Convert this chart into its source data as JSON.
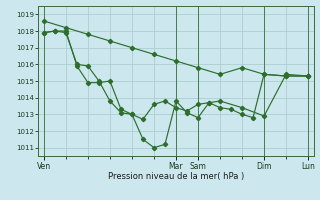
{
  "bg_color": "#cce8ee",
  "grid_color": "#aacccc",
  "line_color": "#2d6e2d",
  "xlabel": "Pression niveau de la mer( hPa )",
  "ylim": [
    1010.5,
    1019.5
  ],
  "yticks": [
    1011,
    1012,
    1013,
    1014,
    1015,
    1016,
    1017,
    1018,
    1019
  ],
  "figsize": [
    3.2,
    2.0
  ],
  "dpi": 100,
  "line1_x": [
    0,
    12,
    24,
    36,
    48,
    60,
    72,
    84,
    96,
    108,
    120,
    132,
    144
  ],
  "line1_y": [
    1018.6,
    1018.2,
    1017.8,
    1017.4,
    1017.0,
    1016.6,
    1016.2,
    1015.8,
    1015.4,
    1015.8,
    1015.4,
    1015.3,
    1015.3
  ],
  "line2_x": [
    0,
    6,
    12,
    18,
    24,
    30,
    36,
    42,
    48,
    54,
    60,
    66,
    72,
    78,
    84,
    90,
    96,
    102,
    108,
    114,
    120,
    132,
    144
  ],
  "line2_y": [
    1017.9,
    1018.0,
    1017.9,
    1016.0,
    1015.9,
    1015.0,
    1013.8,
    1013.1,
    1013.0,
    1012.7,
    1013.6,
    1013.8,
    1013.4,
    1013.2,
    1013.6,
    1013.7,
    1013.4,
    1013.3,
    1013.0,
    1012.8,
    1015.4,
    1015.3,
    1015.3
  ],
  "line3_x": [
    0,
    6,
    12,
    18,
    24,
    30,
    36,
    42,
    48,
    54,
    60,
    66,
    72,
    78,
    84,
    90,
    96,
    108,
    120,
    132,
    144
  ],
  "line3_y": [
    1017.9,
    1018.0,
    1018.0,
    1015.9,
    1014.9,
    1014.9,
    1015.0,
    1013.3,
    1013.0,
    1011.5,
    1011.0,
    1011.2,
    1013.8,
    1013.1,
    1012.8,
    1013.7,
    1013.8,
    1013.4,
    1012.9,
    1015.4,
    1015.3
  ],
  "day_ticks_x": [
    0,
    72,
    84,
    120,
    144
  ],
  "day_labels": [
    "Ven",
    "Mar",
    "Sam",
    "Dim",
    "Lun"
  ],
  "minor_ticks_x": [
    12,
    24,
    36,
    48,
    60,
    96,
    108,
    132
  ],
  "xlim": [
    -3,
    147
  ]
}
